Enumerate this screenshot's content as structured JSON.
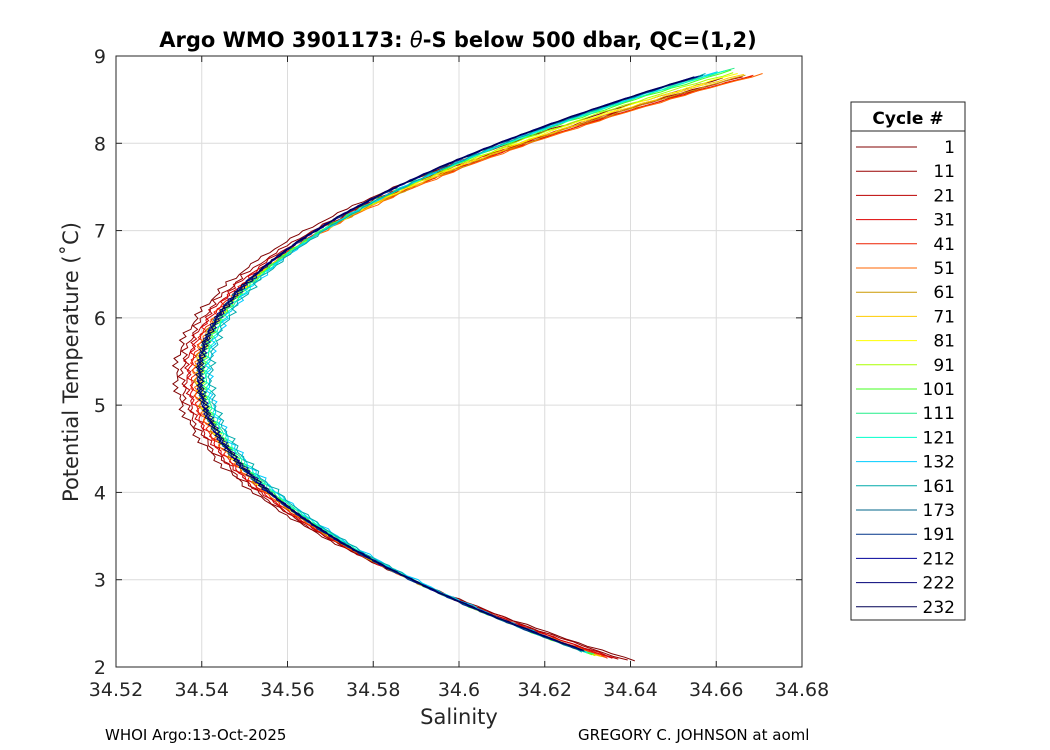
{
  "chart_data": {
    "type": "line",
    "title_prefix": "Argo WMO 3901173: ",
    "title_symbol": "θ",
    "title_suffix": "-S below 500 dbar,  QC=(1,2)",
    "xlabel": "Salinity",
    "ylabel": "Potential Temperature (˚C)",
    "xlim": [
      34.52,
      34.68
    ],
    "ylim": [
      2,
      9
    ],
    "xticks": [
      34.52,
      34.54,
      34.56,
      34.58,
      34.6,
      34.62,
      34.64,
      34.66,
      34.68
    ],
    "xtick_labels": [
      "34.52",
      "34.54",
      "34.56",
      "34.58",
      "34.6",
      "34.62",
      "34.64",
      "34.66",
      "34.68"
    ],
    "yticks": [
      2,
      3,
      4,
      5,
      6,
      7,
      8,
      9
    ],
    "ytick_labels": [
      "2",
      "3",
      "4",
      "5",
      "6",
      "7",
      "8",
      "9"
    ],
    "grid": true,
    "legend_title": "Cycle #",
    "legend_position": "right",
    "series": [
      {
        "name": "1",
        "color": "#800000",
        "shift": -0.0055,
        "top": [
          34.662,
          8.75
        ],
        "bottom": [
          34.641,
          2.07
        ]
      },
      {
        "name": "11",
        "color": "#990000",
        "shift": -0.004,
        "top": [
          34.664,
          8.74
        ],
        "bottom": [
          34.639,
          2.08
        ]
      },
      {
        "name": "21",
        "color": "#bb0000",
        "shift": -0.003,
        "top": [
          34.666,
          8.76
        ],
        "bottom": [
          34.637,
          2.09
        ]
      },
      {
        "name": "31",
        "color": "#dd0000",
        "shift": -0.0022,
        "top": [
          34.668,
          8.77
        ],
        "bottom": [
          34.636,
          2.1
        ]
      },
      {
        "name": "41",
        "color": "#ee2000",
        "shift": -0.0016,
        "top": [
          34.669,
          8.78
        ],
        "bottom": [
          34.635,
          2.1
        ]
      },
      {
        "name": "51",
        "color": "#ff6600",
        "shift": -0.001,
        "top": [
          34.671,
          8.8
        ],
        "bottom": [
          34.634,
          2.11
        ]
      },
      {
        "name": "61",
        "color": "#cc9900",
        "shift": -0.0006,
        "top": [
          34.667,
          8.78
        ],
        "bottom": [
          34.633,
          2.12
        ]
      },
      {
        "name": "71",
        "color": "#ffcc00",
        "shift": -0.0002,
        "top": [
          34.666,
          8.79
        ],
        "bottom": [
          34.633,
          2.12
        ]
      },
      {
        "name": "81",
        "color": "#ffff00",
        "shift": 0.0001,
        "top": [
          34.665,
          8.8
        ],
        "bottom": [
          34.632,
          2.13
        ]
      },
      {
        "name": "91",
        "color": "#aaff00",
        "shift": 0.0004,
        "top": [
          34.664,
          8.81
        ],
        "bottom": [
          34.632,
          2.13
        ]
      },
      {
        "name": "101",
        "color": "#44ff22",
        "shift": 0.0008,
        "top": [
          34.664,
          8.84
        ],
        "bottom": [
          34.631,
          2.14
        ]
      },
      {
        "name": "111",
        "color": "#22ee88",
        "shift": 0.0012,
        "top": [
          34.664,
          8.86
        ],
        "bottom": [
          34.631,
          2.15
        ]
      },
      {
        "name": "121",
        "color": "#00ffcc",
        "shift": 0.0016,
        "top": [
          34.662,
          8.83
        ],
        "bottom": [
          34.63,
          2.16
        ]
      },
      {
        "name": "132",
        "color": "#00ccff",
        "shift": 0.0022,
        "top": [
          34.66,
          8.82
        ],
        "bottom": [
          34.63,
          2.17
        ]
      },
      {
        "name": "161",
        "color": "#00aaaa",
        "shift": 0.0026,
        "top": [
          34.658,
          8.8
        ],
        "bottom": [
          34.629,
          2.17
        ]
      },
      {
        "name": "173",
        "color": "#006688",
        "shift": 0.0,
        "top": [
          34.657,
          8.78
        ],
        "bottom": [
          34.629,
          2.18
        ]
      },
      {
        "name": "191",
        "color": "#003388",
        "shift": 0.0,
        "top": [
          34.656,
          8.77
        ],
        "bottom": [
          34.629,
          2.18
        ]
      },
      {
        "name": "212",
        "color": "#000099",
        "shift": 0.0,
        "top": [
          34.655,
          8.76
        ],
        "bottom": [
          34.629,
          2.19
        ]
      },
      {
        "name": "222",
        "color": "#000077",
        "shift": 0.0,
        "top": [
          34.655,
          8.76
        ],
        "bottom": [
          34.629,
          2.19
        ]
      },
      {
        "name": "232",
        "color": "#000055",
        "shift": 0.0,
        "top": [
          34.655,
          8.76
        ],
        "bottom": [
          34.629,
          2.19
        ]
      }
    ],
    "nose": {
      "salinity": 34.5395,
      "temperature": 5.35
    }
  },
  "footer": {
    "left": "WHOI Argo:13-Oct-2025",
    "right": "GREGORY C. JOHNSON at aoml"
  }
}
